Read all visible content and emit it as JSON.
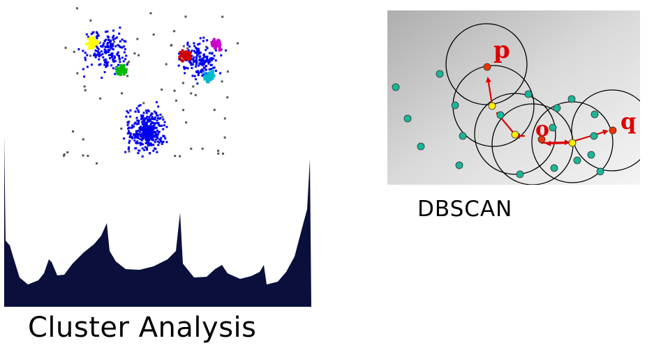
{
  "cluster_analysis": {
    "caption": "Cluster Analysis",
    "colors": {
      "noise": "#555555",
      "blue": "#0000ee",
      "yellow": "#ffff00",
      "green": "#00bb00",
      "red": "#cc0000",
      "magenta": "#cc00cc",
      "cyan": "#00bbcc",
      "density": "#0a0f3c"
    }
  },
  "dbscan": {
    "caption": "DBSCAN",
    "labels": {
      "p": "p",
      "o": "o",
      "q": "q"
    },
    "colors": {
      "core_point": "#1ab69a",
      "border_point": "#ffee00",
      "labeled_point": "#ee3300",
      "arrow": "#dd0000",
      "label": "#dd0000",
      "circle": "#000000"
    }
  }
}
